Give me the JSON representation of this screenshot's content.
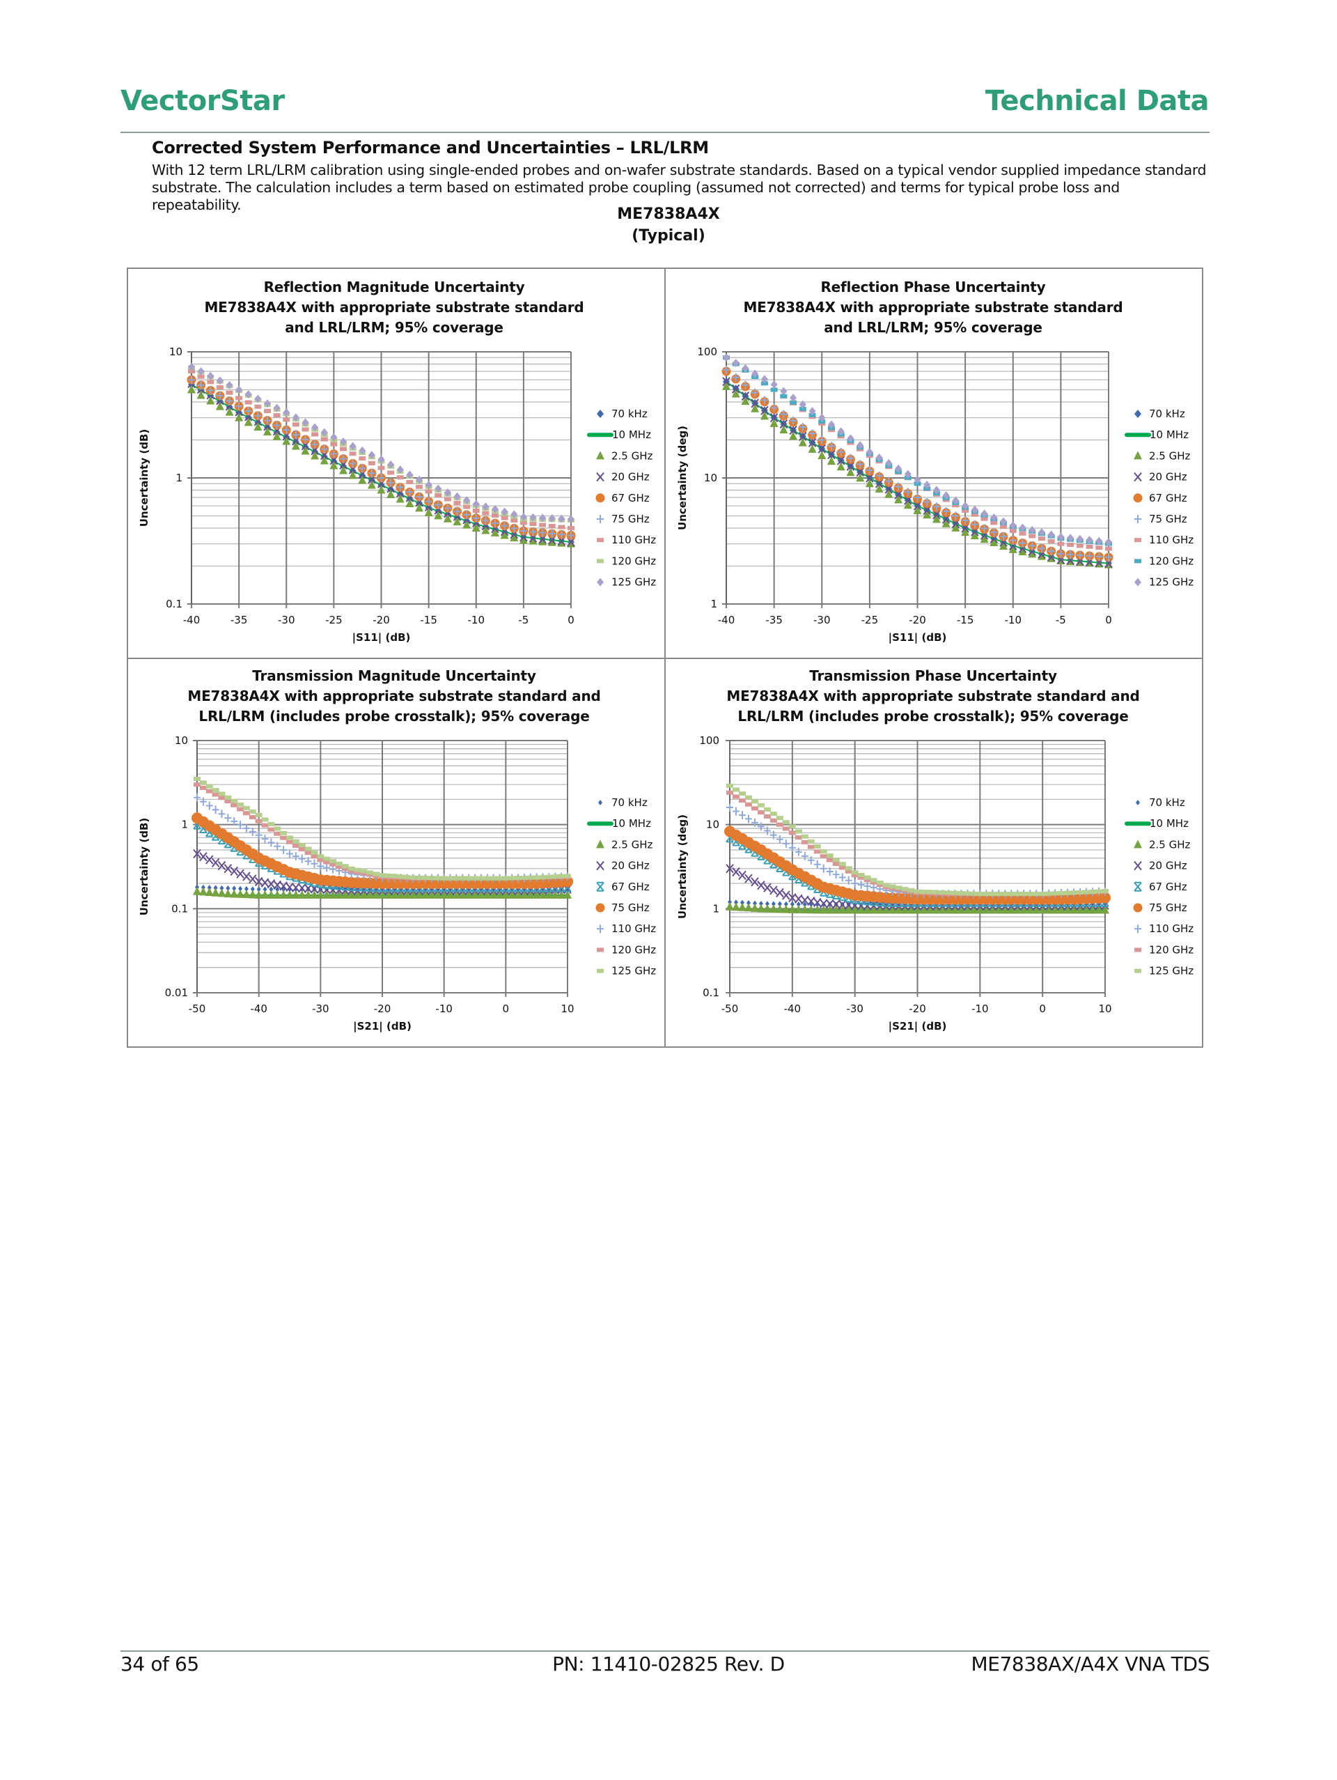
{
  "header": {
    "brand": "VectorStar",
    "doc_type": "Technical Data"
  },
  "section": {
    "title": "Corrected System Performance and Uncertainties – LRL/LRM",
    "paragraph": "With 12 term LRL/LRM calibration using single-ended probes and on-wafer substrate standards. Based on a typical vendor supplied impedance standard substrate. The calculation includes a term based on estimated probe coupling (assumed not corrected) and terms for typical probe loss and repeatability.",
    "model": "ME7838A4X",
    "model_note": "(Typical)"
  },
  "footer": {
    "page": "34 of 65",
    "part_number": "PN: 11410-02825 Rev. D",
    "doc_name": "ME7838AX/A4X VNA TDS"
  },
  "chart_data": [
    {
      "type": "scatter",
      "title": [
        "Reflection Magnitude Uncertainty",
        "ME7838A4X with appropriate substrate standard",
        "and LRL/LRM; 95% coverage"
      ],
      "xlabel": "|S11| (dB)",
      "ylabel": "Uncertainty (dB)",
      "xlim": [
        -40,
        0
      ],
      "ylim": [
        0.1,
        10
      ],
      "yscale": "log",
      "grid": true,
      "legend": "right",
      "xticks": [
        "-40",
        "-35",
        "-30",
        "-25",
        "-20",
        "-15",
        "-10",
        "-5",
        "0"
      ],
      "yticks": [
        "0.1",
        "1",
        "10"
      ],
      "x": [
        -40,
        -35,
        -30,
        -25,
        -20,
        -15,
        -10,
        -5,
        0
      ],
      "series": [
        {
          "name": "70 kHz",
          "marker": "diamond",
          "color": "#3E6AAE",
          "values": [
            5.5,
            3.3,
            2.1,
            1.35,
            0.88,
            0.58,
            0.43,
            0.34,
            0.31
          ]
        },
        {
          "name": "10 MHz",
          "marker": "line",
          "color": "#00A94F",
          "values": [
            5.5,
            3.3,
            2.1,
            1.35,
            0.88,
            0.58,
            0.43,
            0.34,
            0.31
          ]
        },
        {
          "name": "2.5 GHz",
          "marker": "triangle",
          "color": "#76A240",
          "values": [
            5.0,
            3.0,
            1.95,
            1.25,
            0.8,
            0.53,
            0.4,
            0.32,
            0.3
          ]
        },
        {
          "name": "20 GHz",
          "marker": "x",
          "color": "#644D8E",
          "values": [
            5.6,
            3.35,
            2.15,
            1.38,
            0.9,
            0.59,
            0.44,
            0.34,
            0.31
          ]
        },
        {
          "name": "67 GHz",
          "marker": "circle",
          "color": "#E37B2E",
          "values": [
            6.0,
            3.7,
            2.4,
            1.55,
            1.0,
            0.65,
            0.48,
            0.38,
            0.35
          ]
        },
        {
          "name": "75 GHz",
          "marker": "plus",
          "color": "#8EA9DB",
          "values": [
            6.0,
            3.7,
            2.4,
            1.55,
            1.0,
            0.65,
            0.48,
            0.38,
            0.35
          ]
        },
        {
          "name": "110 GHz",
          "marker": "dash",
          "color": "#D99694",
          "values": [
            7.0,
            4.3,
            2.9,
            1.85,
            1.2,
            0.78,
            0.55,
            0.44,
            0.4
          ]
        },
        {
          "name": "120 GHz",
          "marker": "dash",
          "color": "#B5CF8E",
          "values": [
            7.5,
            4.9,
            3.2,
            2.0,
            1.35,
            0.85,
            0.6,
            0.47,
            0.46
          ]
        },
        {
          "name": "125 GHz",
          "marker": "diamond",
          "color": "#A9A1CC",
          "values": [
            7.6,
            5.0,
            3.3,
            2.1,
            1.4,
            0.88,
            0.62,
            0.49,
            0.47
          ]
        }
      ]
    },
    {
      "type": "scatter",
      "title": [
        "Reflection Phase Uncertainty",
        "ME7838A4X with appropriate substrate standard",
        "and LRL/LRM; 95% coverage"
      ],
      "xlabel": "|S11| (dB)",
      "ylabel": "Uncertainty (deg)",
      "xlim": [
        -40,
        0
      ],
      "ylim": [
        1,
        100
      ],
      "yscale": "log",
      "grid": true,
      "legend": "right",
      "xticks": [
        "-40",
        "-35",
        "-30",
        "-25",
        "-20",
        "-15",
        "-10",
        "-5",
        "0"
      ],
      "yticks": [
        "1",
        "10",
        "100"
      ],
      "x": [
        -40,
        -35,
        -30,
        -25,
        -20,
        -15,
        -10,
        -5,
        0
      ],
      "series": [
        {
          "name": "70 kHz",
          "marker": "diamond",
          "color": "#3E6AAE",
          "values": [
            58,
            30,
            17,
            10,
            6,
            4,
            2.9,
            2.25,
            2.1
          ]
        },
        {
          "name": "10 MHz",
          "marker": "line",
          "color": "#00A94F",
          "values": [
            58,
            30,
            17,
            10,
            6,
            4,
            2.9,
            2.25,
            2.1
          ]
        },
        {
          "name": "2.5 GHz",
          "marker": "triangle",
          "color": "#76A240",
          "values": [
            53,
            27,
            15,
            9,
            5.5,
            3.7,
            2.7,
            2.2,
            2.05
          ]
        },
        {
          "name": "20 GHz",
          "marker": "x",
          "color": "#644D8E",
          "values": [
            58,
            30,
            17,
            10,
            6,
            4,
            2.9,
            2.25,
            2.1
          ]
        },
        {
          "name": "67 GHz",
          "marker": "circle",
          "color": "#E37B2E",
          "values": [
            70,
            35,
            19.5,
            11.3,
            6.8,
            4.5,
            3.2,
            2.5,
            2.35
          ]
        },
        {
          "name": "75 GHz",
          "marker": "plus",
          "color": "#8EA9DB",
          "values": [
            72,
            36,
            20,
            11.5,
            7,
            4.6,
            3.2,
            2.5,
            2.35
          ]
        },
        {
          "name": "110 GHz",
          "marker": "dash",
          "color": "#D99694",
          "values": [
            90,
            50,
            27,
            15,
            9,
            5.5,
            3.8,
            3.0,
            2.75
          ]
        },
        {
          "name": "120 GHz",
          "marker": "dash",
          "color": "#4BACC6",
          "values": [
            90,
            50,
            28,
            15.5,
            9,
            5.8,
            4.1,
            3.3,
            3.0
          ]
        },
        {
          "name": "125 GHz",
          "marker": "diamond",
          "color": "#A9A1CC",
          "values": [
            90,
            55,
            30,
            16,
            9.7,
            6,
            4.2,
            3.4,
            3.1
          ]
        }
      ]
    },
    {
      "type": "scatter",
      "title": [
        "Transmission Magnitude Uncertainty",
        "ME7838A4X with appropriate substrate standard and",
        "LRL/LRM (includes probe crosstalk); 95% coverage"
      ],
      "xlabel": "|S21| (dB)",
      "ylabel": "Uncertainty (dB)",
      "xlim": [
        -50,
        10
      ],
      "ylim": [
        0.01,
        10
      ],
      "yscale": "log",
      "grid": true,
      "legend": "right",
      "xticks": [
        "-50",
        "-40",
        "-30",
        "-20",
        "-10",
        "0",
        "10"
      ],
      "yticks": [
        "0.01",
        "0.1",
        "1",
        "10"
      ],
      "x": [
        -50,
        -45,
        -40,
        -35,
        -30,
        -25,
        -20,
        -15,
        -10,
        -5,
        0,
        5,
        10
      ],
      "series": [
        {
          "name": "70 kHz",
          "marker": "smalldiamond",
          "color": "#3E6AAE",
          "values": [
            0.18,
            0.175,
            0.17,
            0.17,
            0.17,
            0.17,
            0.17,
            0.17,
            0.17,
            0.17,
            0.17,
            0.17,
            0.175
          ]
        },
        {
          "name": "10 MHz",
          "marker": "line",
          "color": "#00A94F",
          "values": [
            0.15,
            0.145,
            0.145,
            0.145,
            0.145,
            0.145,
            0.145,
            0.145,
            0.145,
            0.145,
            0.145,
            0.145,
            0.145
          ]
        },
        {
          "name": "2.5 GHz",
          "marker": "triangle",
          "color": "#76A240",
          "values": [
            0.16,
            0.15,
            0.145,
            0.145,
            0.145,
            0.145,
            0.145,
            0.145,
            0.145,
            0.145,
            0.145,
            0.145,
            0.145
          ]
        },
        {
          "name": "20 GHz",
          "marker": "x",
          "color": "#644D8E",
          "values": [
            0.45,
            0.3,
            0.21,
            0.18,
            0.17,
            0.165,
            0.165,
            0.165,
            0.165,
            0.165,
            0.165,
            0.165,
            0.17
          ]
        },
        {
          "name": "67 GHz",
          "marker": "asterisk",
          "color": "#3A9FB5",
          "values": [
            1.0,
            0.6,
            0.36,
            0.25,
            0.2,
            0.185,
            0.18,
            0.18,
            0.18,
            0.18,
            0.18,
            0.18,
            0.18
          ]
        },
        {
          "name": "75 GHz",
          "marker": "circle",
          "color": "#E37B2E",
          "values": [
            1.2,
            0.7,
            0.4,
            0.27,
            0.22,
            0.205,
            0.2,
            0.2,
            0.2,
            0.2,
            0.2,
            0.2,
            0.21
          ]
        },
        {
          "name": "110 GHz",
          "marker": "plus",
          "color": "#8EA9DB",
          "values": [
            2.1,
            1.2,
            0.75,
            0.45,
            0.32,
            0.26,
            0.235,
            0.23,
            0.23,
            0.23,
            0.23,
            0.235,
            0.24
          ]
        },
        {
          "name": "120 GHz",
          "marker": "dash",
          "color": "#D99694",
          "values": [
            3.0,
            1.9,
            1.1,
            0.62,
            0.38,
            0.28,
            0.24,
            0.23,
            0.23,
            0.23,
            0.23,
            0.235,
            0.24
          ]
        },
        {
          "name": "125 GHz",
          "marker": "dash",
          "color": "#B5CF8E",
          "values": [
            3.5,
            2.1,
            1.3,
            0.7,
            0.42,
            0.3,
            0.25,
            0.235,
            0.23,
            0.23,
            0.23,
            0.235,
            0.245
          ]
        }
      ]
    },
    {
      "type": "scatter",
      "title": [
        "Transmission Phase Uncertainty",
        "ME7838A4X with appropriate substrate standard and",
        "LRL/LRM (includes probe crosstalk); 95% coverage"
      ],
      "xlabel": "|S21| (dB)",
      "ylabel": "Uncertainty (deg)",
      "xlim": [
        -50,
        10
      ],
      "ylim": [
        0.1,
        100
      ],
      "yscale": "log",
      "grid": true,
      "legend": "right",
      "xticks": [
        "-50",
        "-40",
        "-30",
        "-20",
        "-10",
        "0",
        "10"
      ],
      "yticks": [
        "0.1",
        "1",
        "10",
        "100"
      ],
      "x": [
        -50,
        -45,
        -40,
        -35,
        -30,
        -25,
        -20,
        -15,
        -10,
        -5,
        0,
        5,
        10
      ],
      "series": [
        {
          "name": "70 kHz",
          "marker": "smalldiamond",
          "color": "#3E6AAE",
          "values": [
            1.2,
            1.15,
            1.13,
            1.12,
            1.12,
            1.12,
            1.12,
            1.12,
            1.12,
            1.12,
            1.12,
            1.13,
            1.15
          ]
        },
        {
          "name": "10 MHz",
          "marker": "line",
          "color": "#00A94F",
          "values": [
            0.98,
            0.96,
            0.96,
            0.96,
            0.96,
            0.96,
            0.96,
            0.96,
            0.96,
            0.96,
            0.96,
            0.96,
            0.96
          ]
        },
        {
          "name": "2.5 GHz",
          "marker": "triangle",
          "color": "#76A240",
          "values": [
            1.05,
            1.0,
            0.97,
            0.96,
            0.96,
            0.96,
            0.96,
            0.96,
            0.96,
            0.96,
            0.96,
            0.96,
            0.96
          ]
        },
        {
          "name": "20 GHz",
          "marker": "x",
          "color": "#644D8E",
          "values": [
            3.0,
            1.9,
            1.35,
            1.15,
            1.1,
            1.08,
            1.08,
            1.08,
            1.08,
            1.08,
            1.08,
            1.09,
            1.1
          ]
        },
        {
          "name": "67 GHz",
          "marker": "asterisk",
          "color": "#3A9FB5",
          "values": [
            7,
            4.3,
            2.5,
            1.6,
            1.3,
            1.2,
            1.2,
            1.2,
            1.2,
            1.2,
            1.2,
            1.2,
            1.2
          ]
        },
        {
          "name": "75 GHz",
          "marker": "circle",
          "color": "#E37B2E",
          "values": [
            8.3,
            5.0,
            2.9,
            1.8,
            1.45,
            1.35,
            1.3,
            1.3,
            1.3,
            1.3,
            1.3,
            1.3,
            1.35
          ]
        },
        {
          "name": "110 GHz",
          "marker": "plus",
          "color": "#8EA9DB",
          "values": [
            16,
            9.5,
            5.3,
            3.0,
            2.0,
            1.65,
            1.5,
            1.5,
            1.5,
            1.5,
            1.5,
            1.55,
            1.6
          ]
        },
        {
          "name": "120 GHz",
          "marker": "dash",
          "color": "#D99694",
          "values": [
            24,
            14,
            8,
            4.2,
            2.5,
            1.8,
            1.55,
            1.5,
            1.5,
            1.5,
            1.5,
            1.55,
            1.6
          ]
        },
        {
          "name": "125 GHz",
          "marker": "dash",
          "color": "#B5CF8E",
          "values": [
            29,
            17,
            9.5,
            4.8,
            2.7,
            1.9,
            1.6,
            1.55,
            1.5,
            1.5,
            1.5,
            1.55,
            1.62
          ]
        }
      ]
    }
  ]
}
